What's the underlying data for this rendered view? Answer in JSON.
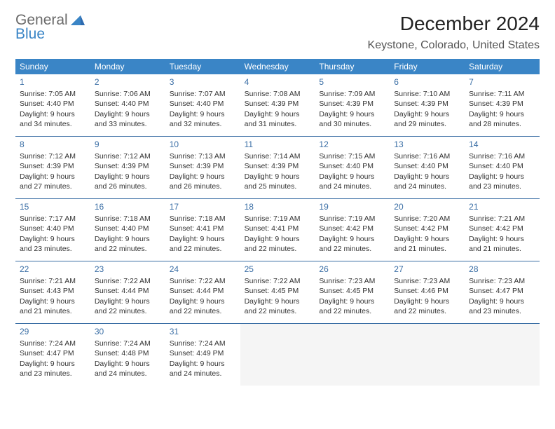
{
  "logo": {
    "text1": "General",
    "text2": "Blue"
  },
  "title": "December 2024",
  "location": "Keystone, Colorado, United States",
  "header_bg": "#3a85c6",
  "divider_color": "#3a6ea5",
  "weekdays": [
    "Sunday",
    "Monday",
    "Tuesday",
    "Wednesday",
    "Thursday",
    "Friday",
    "Saturday"
  ],
  "weeks": [
    [
      {
        "n": "1",
        "sr": "7:05 AM",
        "ss": "4:40 PM",
        "dl": "9 hours and 34 minutes."
      },
      {
        "n": "2",
        "sr": "7:06 AM",
        "ss": "4:40 PM",
        "dl": "9 hours and 33 minutes."
      },
      {
        "n": "3",
        "sr": "7:07 AM",
        "ss": "4:40 PM",
        "dl": "9 hours and 32 minutes."
      },
      {
        "n": "4",
        "sr": "7:08 AM",
        "ss": "4:39 PM",
        "dl": "9 hours and 31 minutes."
      },
      {
        "n": "5",
        "sr": "7:09 AM",
        "ss": "4:39 PM",
        "dl": "9 hours and 30 minutes."
      },
      {
        "n": "6",
        "sr": "7:10 AM",
        "ss": "4:39 PM",
        "dl": "9 hours and 29 minutes."
      },
      {
        "n": "7",
        "sr": "7:11 AM",
        "ss": "4:39 PM",
        "dl": "9 hours and 28 minutes."
      }
    ],
    [
      {
        "n": "8",
        "sr": "7:12 AM",
        "ss": "4:39 PM",
        "dl": "9 hours and 27 minutes."
      },
      {
        "n": "9",
        "sr": "7:12 AM",
        "ss": "4:39 PM",
        "dl": "9 hours and 26 minutes."
      },
      {
        "n": "10",
        "sr": "7:13 AM",
        "ss": "4:39 PM",
        "dl": "9 hours and 26 minutes."
      },
      {
        "n": "11",
        "sr": "7:14 AM",
        "ss": "4:39 PM",
        "dl": "9 hours and 25 minutes."
      },
      {
        "n": "12",
        "sr": "7:15 AM",
        "ss": "4:40 PM",
        "dl": "9 hours and 24 minutes."
      },
      {
        "n": "13",
        "sr": "7:16 AM",
        "ss": "4:40 PM",
        "dl": "9 hours and 24 minutes."
      },
      {
        "n": "14",
        "sr": "7:16 AM",
        "ss": "4:40 PM",
        "dl": "9 hours and 23 minutes."
      }
    ],
    [
      {
        "n": "15",
        "sr": "7:17 AM",
        "ss": "4:40 PM",
        "dl": "9 hours and 23 minutes."
      },
      {
        "n": "16",
        "sr": "7:18 AM",
        "ss": "4:40 PM",
        "dl": "9 hours and 22 minutes."
      },
      {
        "n": "17",
        "sr": "7:18 AM",
        "ss": "4:41 PM",
        "dl": "9 hours and 22 minutes."
      },
      {
        "n": "18",
        "sr": "7:19 AM",
        "ss": "4:41 PM",
        "dl": "9 hours and 22 minutes."
      },
      {
        "n": "19",
        "sr": "7:19 AM",
        "ss": "4:42 PM",
        "dl": "9 hours and 22 minutes."
      },
      {
        "n": "20",
        "sr": "7:20 AM",
        "ss": "4:42 PM",
        "dl": "9 hours and 21 minutes."
      },
      {
        "n": "21",
        "sr": "7:21 AM",
        "ss": "4:42 PM",
        "dl": "9 hours and 21 minutes."
      }
    ],
    [
      {
        "n": "22",
        "sr": "7:21 AM",
        "ss": "4:43 PM",
        "dl": "9 hours and 21 minutes."
      },
      {
        "n": "23",
        "sr": "7:22 AM",
        "ss": "4:44 PM",
        "dl": "9 hours and 22 minutes."
      },
      {
        "n": "24",
        "sr": "7:22 AM",
        "ss": "4:44 PM",
        "dl": "9 hours and 22 minutes."
      },
      {
        "n": "25",
        "sr": "7:22 AM",
        "ss": "4:45 PM",
        "dl": "9 hours and 22 minutes."
      },
      {
        "n": "26",
        "sr": "7:23 AM",
        "ss": "4:45 PM",
        "dl": "9 hours and 22 minutes."
      },
      {
        "n": "27",
        "sr": "7:23 AM",
        "ss": "4:46 PM",
        "dl": "9 hours and 22 minutes."
      },
      {
        "n": "28",
        "sr": "7:23 AM",
        "ss": "4:47 PM",
        "dl": "9 hours and 23 minutes."
      }
    ],
    [
      {
        "n": "29",
        "sr": "7:24 AM",
        "ss": "4:47 PM",
        "dl": "9 hours and 23 minutes."
      },
      {
        "n": "30",
        "sr": "7:24 AM",
        "ss": "4:48 PM",
        "dl": "9 hours and 24 minutes."
      },
      {
        "n": "31",
        "sr": "7:24 AM",
        "ss": "4:49 PM",
        "dl": "9 hours and 24 minutes."
      },
      null,
      null,
      null,
      null
    ]
  ],
  "labels": {
    "sunrise": "Sunrise:",
    "sunset": "Sunset:",
    "daylight": "Daylight:"
  }
}
